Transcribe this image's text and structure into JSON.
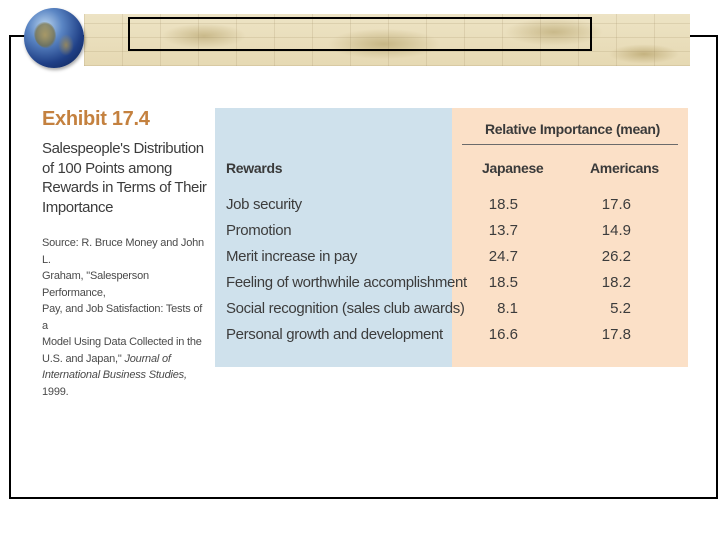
{
  "exhibit": {
    "title": "Exhibit 17.4",
    "subtitle_lines": [
      "Salespeople's Distribution",
      "of 100 Points among",
      "Rewards in Terms of Their",
      "Importance"
    ],
    "source_lines": [
      "Source: R. Bruce Money and John L.",
      "Graham, \"Salesperson Performance,",
      "Pay, and Job Satisfaction: Tests of a",
      "Model Using Data Collected in the",
      "U.S. and Japan,\""
    ],
    "source_journal_prefix": "Journal of",
    "source_journal": "International Business Studies,",
    "source_year": "1999."
  },
  "table": {
    "group_header": "Relative Importance (mean)",
    "columns": [
      "Rewards",
      "Japanese",
      "Americans"
    ],
    "rows": [
      {
        "reward": "Job security",
        "japanese": "18.5",
        "americans": "17.6"
      },
      {
        "reward": "Promotion",
        "japanese": "13.7",
        "americans": "14.9"
      },
      {
        "reward": "Merit increase in pay",
        "japanese": "24.7",
        "americans": "26.2"
      },
      {
        "reward": "Feeling of worthwhile accomplishment",
        "japanese": "18.5",
        "americans": "18.2"
      },
      {
        "reward": "Social recognition (sales club awards)",
        "japanese": "8.1",
        "americans": "5.2"
      },
      {
        "reward": "Personal growth and development",
        "japanese": "16.6",
        "americans": "17.8"
      }
    ]
  },
  "colors": {
    "title_accent": "#c4813f",
    "rewards_panel": "#cfe1ec",
    "values_panel": "#fbe0c7"
  },
  "decor": {
    "globe_icon": "globe-icon",
    "banner": "world-map-banner"
  }
}
